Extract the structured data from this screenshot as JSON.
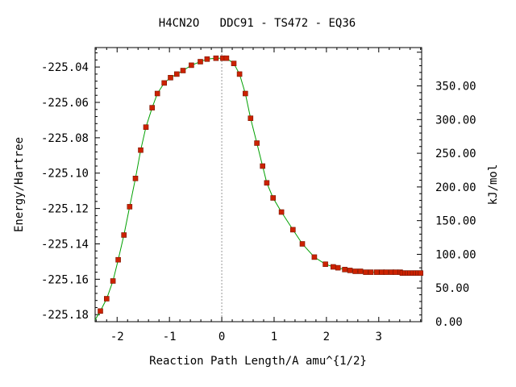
{
  "chart_data": {
    "type": "line",
    "title": "H4CN2O   DDC91 - TS472 - EQ36",
    "xlabel": "Reaction Path Length/A amu^{1/2}",
    "ylabel": "Energy/Hartree",
    "ylabel_right": "kJ/mol",
    "xlim": [
      -2.42,
      3.82
    ],
    "ylim": [
      -225.184,
      -225.029
    ],
    "ylim_right": [
      0.0,
      406.9
    ],
    "x_ticks": [
      -2,
      -1,
      0,
      1,
      2,
      3
    ],
    "x_tick_labels": [
      "-2",
      "-1",
      "0",
      "1",
      "2",
      "3"
    ],
    "y_ticks": [
      -225.04,
      -225.06,
      -225.08,
      -225.1,
      -225.12,
      -225.14,
      -225.16,
      -225.18
    ],
    "y_tick_labels": [
      "-225.04",
      "-225.06",
      "-225.08",
      "-225.10",
      "-225.12",
      "-225.14",
      "-225.16",
      "-225.18"
    ],
    "y_right_ticks": [
      0,
      50,
      100,
      150,
      200,
      250,
      300,
      350
    ],
    "y_right_tick_labels": [
      "0.00",
      "50.00",
      "100.00",
      "150.00",
      "200.00",
      "250.00",
      "300.00",
      "350.00"
    ],
    "ts_marker_x": 0,
    "line_color": "#00a000",
    "marker_color": "#cc2200",
    "series": [
      {
        "x": [
          -2.32,
          -2.2,
          -2.08,
          -1.98,
          -1.87,
          -1.76,
          -1.65,
          -1.55,
          -1.45,
          -1.33,
          -1.23,
          -1.1,
          -0.98,
          -0.86,
          -0.74,
          -0.58,
          -0.41,
          -0.28,
          -0.11,
          0.02,
          0.09,
          0.23,
          0.34,
          0.45,
          0.55,
          0.67,
          0.78,
          0.86,
          0.98,
          1.14,
          1.36,
          1.54,
          1.77,
          1.98,
          2.13,
          2.22,
          2.35,
          2.45,
          2.55,
          2.65,
          2.75,
          2.85,
          2.96,
          3.06,
          3.14,
          3.24,
          3.32,
          3.41,
          3.45,
          3.5,
          3.55,
          3.6,
          3.65,
          3.7,
          3.75,
          3.8
        ],
        "y": [
          -225.178,
          -225.171,
          -225.161,
          -225.149,
          -225.135,
          -225.119,
          -225.103,
          -225.087,
          -225.074,
          -225.063,
          -225.055,
          -225.049,
          -225.046,
          -225.044,
          -225.042,
          -225.039,
          -225.037,
          -225.0355,
          -225.035,
          -225.035,
          -225.035,
          -225.038,
          -225.044,
          -225.055,
          -225.069,
          -225.083,
          -225.096,
          -225.1055,
          -225.114,
          -225.122,
          -225.132,
          -225.14,
          -225.1475,
          -225.1515,
          -225.153,
          -225.1535,
          -225.1545,
          -225.155,
          -225.1555,
          -225.1555,
          -225.156,
          -225.156,
          -225.156,
          -225.156,
          -225.156,
          -225.156,
          -225.156,
          -225.156,
          -225.1565,
          -225.1565,
          -225.1565,
          -225.1565,
          -225.1565,
          -225.1565,
          -225.1565,
          -225.1565
        ]
      }
    ]
  }
}
